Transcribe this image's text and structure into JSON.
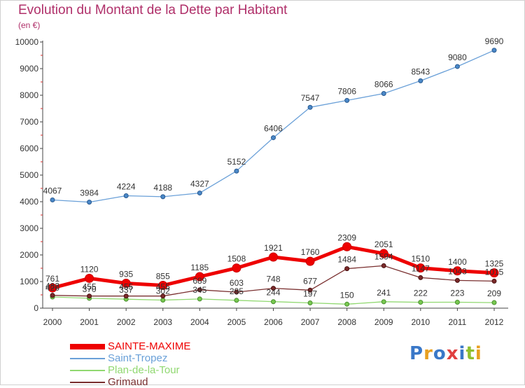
{
  "header": {
    "title": "Evolution du Montant de la Dette par Habitant",
    "unit": "(en €)"
  },
  "logo": {
    "text": "Proxiti",
    "colors": [
      "#3a78c8",
      "#e8a020",
      "#3a78c8",
      "#e04040",
      "#3a78c8",
      "#90c030",
      "#e8a020"
    ]
  },
  "chart_data": {
    "type": "line",
    "categories": [
      "2000",
      "2001",
      "2002",
      "2003",
      "2004",
      "2005",
      "2006",
      "2007",
      "2008",
      "2009",
      "2010",
      "2011",
      "2012"
    ],
    "ylim": [
      0,
      10000
    ],
    "yticks": [
      "0",
      "1000",
      "2000",
      "3000",
      "4000",
      "5000",
      "6000",
      "7000",
      "8000",
      "9000",
      "10000"
    ],
    "grid": false,
    "legend": "bottom-left",
    "series": [
      {
        "name": "SAINTE-MAXIME",
        "color": "#ee0000",
        "values": [
          761,
          1120,
          935,
          855,
          1185,
          1508,
          1921,
          1760,
          2309,
          2051,
          1510,
          1400,
          1325
        ],
        "labels": [
          "761",
          "1120",
          "935",
          "855",
          "1185",
          "1508",
          "1921",
          "1760",
          "2309",
          "2051",
          "1510",
          "1400",
          "1325"
        ]
      },
      {
        "name": "Saint-Tropez",
        "color": "#6aa0d8",
        "values": [
          4067,
          3984,
          4224,
          4188,
          4327,
          5152,
          6406,
          7547,
          7806,
          8066,
          8543,
          9080,
          9690
        ],
        "labels": [
          "4067",
          "3984",
          "4224",
          "4188",
          "4327",
          "5152",
          "6406",
          "7547",
          "7806",
          "8066",
          "8543",
          "9080",
          "9690"
        ]
      },
      {
        "name": "Plan-de-la-Tour",
        "color": "#90d870",
        "values": [
          420,
          370,
          337,
          302,
          345,
          295,
          244,
          197,
          150,
          241,
          222,
          223,
          209
        ],
        "labels": [
          "420",
          "370",
          "337",
          "302",
          "345",
          "295",
          "244",
          "197",
          "150",
          "241",
          "222",
          "223",
          "209"
        ]
      },
      {
        "name": "Grimaud",
        "color": "#7a3030",
        "values": [
          482,
          455,
          455,
          455,
          689,
          603,
          748,
          677,
          1484,
          1594,
          1147,
          1043,
          1015
        ],
        "labels": [
          "482",
          "455",
          "455",
          "455",
          "689",
          "603",
          "748",
          "677",
          "1484",
          "1594",
          "1147",
          "1043",
          "1015"
        ]
      }
    ]
  }
}
